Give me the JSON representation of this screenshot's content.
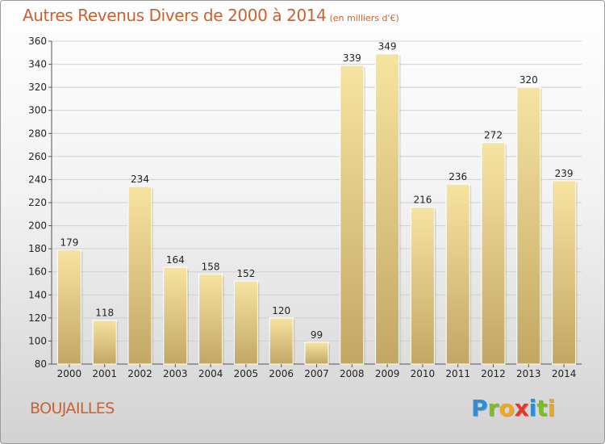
{
  "title": "Autres Revenus Divers de 2000 à 2014",
  "title_unit": "(en milliers d'€)",
  "location": "BOUJAILLES",
  "logo": {
    "text": "Proxiti",
    "letters": [
      {
        "ch": "P",
        "color": "#2a8fd6"
      },
      {
        "ch": "r",
        "color": "#7dbb2a"
      },
      {
        "ch": "o",
        "color": "#f3a51b"
      },
      {
        "ch": "x",
        "color": "#e2372b"
      },
      {
        "ch": "i",
        "color": "#2a8fd6"
      },
      {
        "ch": "t",
        "color": "#7dbb2a"
      },
      {
        "ch": "i",
        "color": "#f3a51b"
      }
    ]
  },
  "colors": {
    "title": "#c9622e",
    "bar_top": "#f7e3a0",
    "bar_bottom": "#c2a764",
    "grid": "#cfcfcf",
    "text": "#222222"
  },
  "chart_data": {
    "type": "bar",
    "categories": [
      "2000",
      "2001",
      "2002",
      "2003",
      "2004",
      "2005",
      "2006",
      "2007",
      "2008",
      "2009",
      "2010",
      "2011",
      "2012",
      "2013",
      "2014"
    ],
    "values": [
      179,
      118,
      234,
      164,
      158,
      152,
      120,
      99,
      339,
      349,
      216,
      236,
      272,
      320,
      239
    ],
    "ylim": [
      80,
      360
    ],
    "yticks": [
      80,
      100,
      120,
      140,
      160,
      180,
      200,
      220,
      240,
      260,
      280,
      300,
      320,
      340,
      360
    ],
    "grid": true,
    "xlabel": "",
    "ylabel": ""
  }
}
